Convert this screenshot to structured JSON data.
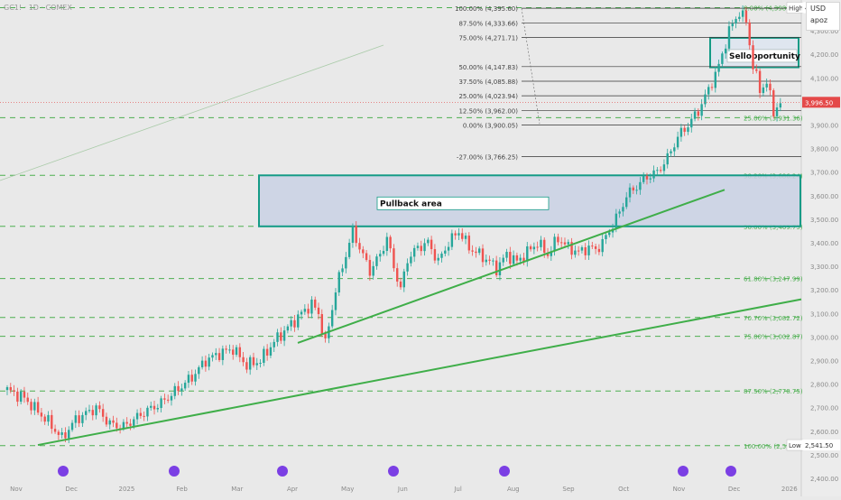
{
  "symbol": "GC1! · 1D · COMEX",
  "currency": "USD",
  "currency_sub": "apoz",
  "colors": {
    "up": "#26a69a",
    "down": "#ef5350",
    "trend": "#3fae49",
    "zone_border": "#149b86",
    "zone_fill": "#c9d1e4",
    "fib": "#4caf50",
    "fib_line": "#333333",
    "current": "#e44949",
    "event": "#7b3fe4"
  },
  "chart_data": {
    "type": "candlestick",
    "ylim": [
      2400,
      4400
    ],
    "x_ticks": [
      "Nov",
      "Dec",
      "2025",
      "Feb",
      "Mar",
      "Apr",
      "May",
      "Jun",
      "Jul",
      "Aug",
      "Sep",
      "Oct",
      "Nov",
      "Dec",
      "2026"
    ],
    "y_ticks": [
      "2,400.00",
      "2,500.00",
      "2,600.00",
      "2,700.00",
      "2,800.00",
      "2,900.00",
      "3,000.00",
      "3,100.00",
      "3,200.00",
      "3,300.00",
      "3,400.00",
      "3,500.00",
      "3,600.00",
      "3,700.00",
      "3,800.00",
      "3,900.00",
      "4,000.00",
      "4,100.00",
      "4,200.00",
      "4,300.00"
    ],
    "current_price": "3,996.50",
    "high_label": "High",
    "high_price": "4,398.00",
    "low_label": "Low",
    "low_price": "2,541.50",
    "price_path": [
      [
        0,
        2775
      ],
      [
        5,
        2740
      ],
      [
        12,
        2640
      ],
      [
        16,
        2570
      ],
      [
        20,
        2650
      ],
      [
        26,
        2700
      ],
      [
        30,
        2630
      ],
      [
        34,
        2620
      ],
      [
        40,
        2680
      ],
      [
        45,
        2720
      ],
      [
        50,
        2780
      ],
      [
        54,
        2830
      ],
      [
        58,
        2900
      ],
      [
        62,
        2930
      ],
      [
        66,
        2950
      ],
      [
        70,
        2880
      ],
      [
        74,
        2900
      ],
      [
        78,
        2980
      ],
      [
        82,
        3040
      ],
      [
        86,
        3100
      ],
      [
        89,
        3140
      ],
      [
        91,
        3100
      ],
      [
        93,
        2970
      ],
      [
        96,
        3200
      ],
      [
        99,
        3350
      ],
      [
        101,
        3450
      ],
      [
        103,
        3380
      ],
      [
        106,
        3280
      ],
      [
        109,
        3350
      ],
      [
        111,
        3420
      ],
      [
        113,
        3300
      ],
      [
        115,
        3200
      ],
      [
        117,
        3330
      ],
      [
        120,
        3380
      ],
      [
        123,
        3400
      ],
      [
        126,
        3320
      ],
      [
        129,
        3400
      ],
      [
        132,
        3450
      ],
      [
        135,
        3380
      ],
      [
        138,
        3350
      ],
      [
        141,
        3320
      ],
      [
        143,
        3290
      ],
      [
        146,
        3350
      ],
      [
        149,
        3320
      ],
      [
        152,
        3360
      ],
      [
        155,
        3400
      ],
      [
        158,
        3350
      ],
      [
        161,
        3420
      ],
      [
        164,
        3380
      ],
      [
        167,
        3360
      ],
      [
        170,
        3380
      ],
      [
        172,
        3370
      ],
      [
        174,
        3400
      ],
      [
        176,
        3450
      ],
      [
        179,
        3530
      ],
      [
        181,
        3600
      ],
      [
        184,
        3640
      ],
      [
        187,
        3680
      ],
      [
        190,
        3700
      ],
      [
        193,
        3760
      ],
      [
        196,
        3850
      ],
      [
        199,
        3900
      ],
      [
        202,
        3960
      ],
      [
        205,
        4050
      ],
      [
        208,
        4150
      ],
      [
        211,
        4300
      ],
      [
        214,
        4380
      ],
      [
        216,
        4340
      ],
      [
        218,
        4150
      ],
      [
        220,
        4050
      ],
      [
        222,
        4080
      ],
      [
        224,
        3960
      ],
      [
        226,
        3990
      ]
    ],
    "fib_right": [
      {
        "label": "0.00% (4,398.00)"
      },
      {
        "label": "25.00% (3,931.36)"
      },
      {
        "label": "38.20% (3,686.24)"
      },
      {
        "label": "50.00% (3,469.75)"
      },
      {
        "label": "61.80% (3,247.99)"
      },
      {
        "label": "70.70% (3,082.72)"
      },
      {
        "label": "75.00% (3,002.87)"
      },
      {
        "label": "87.50% (2,770.75)"
      },
      {
        "label": "100.00% (2,538.74)"
      }
    ],
    "fib_top": [
      {
        "label": "100.00% (4,395.60)"
      },
      {
        "label": "87.50% (4,333.66)"
      },
      {
        "label": "75.00% (4,271.71)"
      },
      {
        "label": "50.00% (4,147.83)"
      },
      {
        "label": "37.50% (4,085.88)"
      },
      {
        "label": "25.00% (4,023.94)"
      },
      {
        "label": "12.50% (3,962.00)"
      },
      {
        "label": "0.00% (3,900.05)"
      },
      {
        "label": "-27.00% (3,766.25)"
      }
    ],
    "annotations": {
      "pullback": "Pullback area",
      "sell": "Sellopportunity"
    }
  }
}
